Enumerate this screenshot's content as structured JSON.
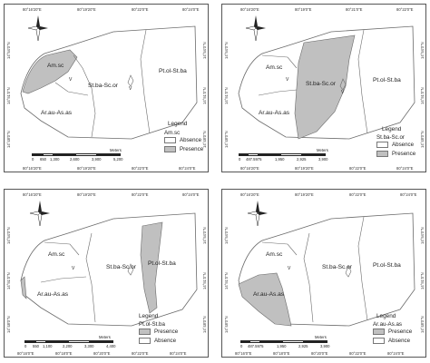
{
  "colors": {
    "presence": "#c0c0c0",
    "absence": "#ffffff",
    "border": "#6b6b6b"
  },
  "panels": [
    {
      "id": "am",
      "top_coords": [
        "80°16'20\"E",
        "80°19'20\"E",
        "80°22'0\"E",
        "80°24'0\"E"
      ],
      "bottom_coords": [
        "80°16'20\"E",
        "80°19'20\"E",
        "80°22'0\"E",
        "80°24'0\"E"
      ],
      "left_coords": [
        "14°54'0\"N",
        "14°51'0\"N",
        "14°48'0\"N"
      ],
      "right_coords": [
        "14°54'0\"N",
        "14°51'0\"N",
        "14°48'0\"N"
      ],
      "regions": [
        "Am.sc",
        "St.ba-Sc.or",
        "Pt.ol-St.ba",
        "Ar.au-As.as"
      ],
      "village": "V",
      "legend": {
        "title": "Legend",
        "species": "Am.sc",
        "items": [
          "Absence",
          "Presence"
        ]
      },
      "scale": {
        "unit": "Meters",
        "ticks": [
          "0",
          "650",
          "1,300",
          "2,600",
          "3,900",
          "5,200"
        ]
      }
    },
    {
      "id": "st",
      "top_coords": [
        "80°16'20\"E",
        "80°19'0\"E",
        "80°21'0\"E",
        "80°22'0\"E"
      ],
      "bottom_coords": [
        "80°16'20\"E",
        "80°19'20\"E",
        "80°22'0\"E",
        "80°24'0\"E"
      ],
      "left_coords": [
        "14°54'0\"N",
        "14°51'0\"N",
        "14°48'0\"N"
      ],
      "right_coords": [
        "14°54'0\"N",
        "14°51'0\"N",
        "14°48'0\"N"
      ],
      "regions": [
        "Am.sc",
        "St.ba-Sc.or",
        "Pt.ol-St.ba",
        "Ar.au-As.as"
      ],
      "village": "V",
      "legend": {
        "title": "Legend",
        "species": "St.ba-Sc.or",
        "items": [
          "Absence",
          "Presence"
        ]
      },
      "scale": {
        "unit": "Meters",
        "ticks": [
          "0",
          "487.5975",
          "1,950",
          "2,925",
          "3,900"
        ]
      }
    },
    {
      "id": "pt",
      "top_coords": [
        "80°16'20\"E",
        "80°19'20\"E",
        "80°22'0\"E",
        "80°24'0\"E"
      ],
      "bottom_coords": [
        "80°16'0\"E",
        "80°18'0\"E",
        "80°20'0\"E",
        "80°22'0\"E",
        "80°24'0\"E"
      ],
      "left_coords": [
        "14°54'0\"N",
        "14°51'0\"N",
        "14°48'0\"N"
      ],
      "right_coords": [
        "14°54'0\"N",
        "14°51'0\"N",
        "14°48'0\"N"
      ],
      "regions": [
        "Am.sc",
        "St.ba-Sc.or",
        "Pt.ol-St.ba",
        "Ar.au-As.as"
      ],
      "village": "V",
      "legend": {
        "title": "Legend",
        "species": "Pt.ol-St.ba",
        "items": [
          "Presence",
          "Absence"
        ]
      },
      "scale": {
        "unit": "Meters",
        "ticks": [
          "0",
          "550",
          "1,100",
          "2,200",
          "3,300",
          "4,400"
        ]
      }
    },
    {
      "id": "ar",
      "top_coords": [
        "80°16'20\"E",
        "80°19'20\"E",
        "80°22'0\"E",
        "80°24'0\"E"
      ],
      "bottom_coords": [
        "80°16'0\"E",
        "80°18'0\"E",
        "80°20'0\"E",
        "80°22'0\"E",
        "80°24'0\"E"
      ],
      "left_coords": [
        "14°54'0\"N",
        "14°51'0\"N",
        "14°48'0\"N"
      ],
      "right_coords": [
        "14°54'0\"N",
        "14°51'0\"N",
        "14°48'0\"N"
      ],
      "regions": [
        "Am.sc",
        "St.ba-Sc.or",
        "Pt.ol-St.ba",
        "Ar.au-As.as"
      ],
      "village": "V",
      "legend": {
        "title": "Legend",
        "species": "Ar.au-As.as",
        "items": [
          "Presence",
          "Absence"
        ]
      },
      "scale": {
        "unit": "Meters",
        "ticks": [
          "0",
          "487.5975",
          "1,950",
          "2,925",
          "3,900"
        ]
      }
    }
  ]
}
